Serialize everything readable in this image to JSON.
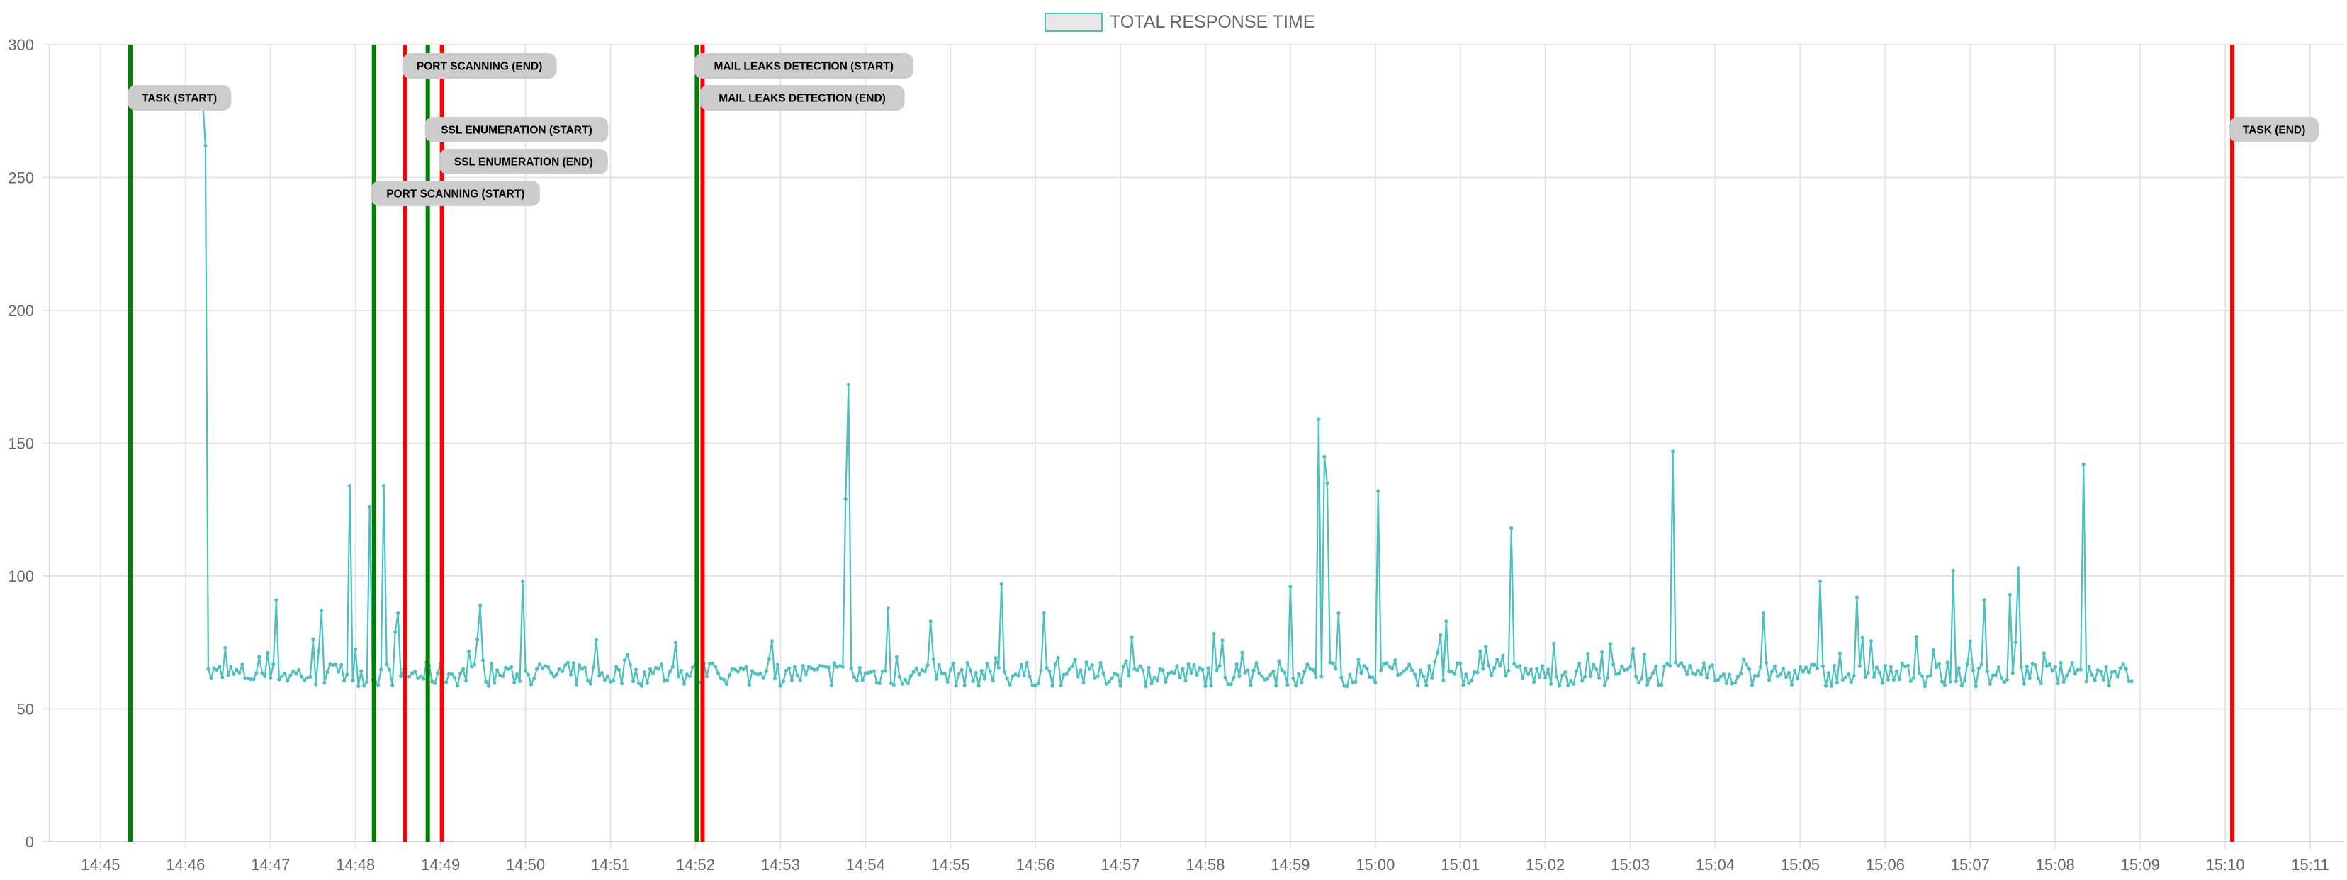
{
  "legend": {
    "label": "TOTAL RESPONSE TIME"
  },
  "colors": {
    "line": "#4bc0c0",
    "legend_fill": "#e8e8e8",
    "start_marker": "#008000",
    "end_marker": "#ff0000",
    "annotation_bg": "#cccccc",
    "grid": "#e5e5e5",
    "tick_text": "#666666"
  },
  "chart_data": {
    "type": "line",
    "title": "",
    "xlabel": "",
    "ylabel": "",
    "ylim": [
      0,
      300
    ],
    "yticks": [
      0,
      50,
      100,
      150,
      200,
      250,
      300
    ],
    "xlim": [
      "14:44:24",
      "15:11:24"
    ],
    "xticks": [
      "14:45",
      "14:46",
      "14:47",
      "14:48",
      "14:49",
      "14:50",
      "14:51",
      "14:52",
      "14:53",
      "14:54",
      "14:55",
      "14:56",
      "14:57",
      "14:58",
      "14:59",
      "15:00",
      "15:01",
      "15:02",
      "15:03",
      "15:04",
      "15:05",
      "15:06",
      "15:07",
      "15:08",
      "15:09",
      "15:10",
      "15:11"
    ],
    "grid": true,
    "legend_position": "top-center",
    "series": [
      {
        "name": "TOTAL RESPONSE TIME",
        "baseline": 63,
        "x_range": [
          "14:46:12",
          "15:08:54"
        ],
        "spikes": [
          {
            "t": "14:46:12",
            "v": 97
          },
          {
            "t": "14:46:13",
            "v": 280
          },
          {
            "t": "14:46:15",
            "v": 262
          },
          {
            "t": "14:47:05",
            "v": 91
          },
          {
            "t": "14:47:36",
            "v": 87
          },
          {
            "t": "14:47:57",
            "v": 134
          },
          {
            "t": "14:48:10",
            "v": 126
          },
          {
            "t": "14:48:20",
            "v": 134
          },
          {
            "t": "14:48:28",
            "v": 79
          },
          {
            "t": "14:48:31",
            "v": 86
          },
          {
            "t": "14:49:28",
            "v": 89
          },
          {
            "t": "14:49:59",
            "v": 98
          },
          {
            "t": "14:50:50",
            "v": 76
          },
          {
            "t": "14:53:47",
            "v": 129
          },
          {
            "t": "14:53:48",
            "v": 172
          },
          {
            "t": "14:54:17",
            "v": 88
          },
          {
            "t": "14:54:46",
            "v": 83
          },
          {
            "t": "14:55:36",
            "v": 97
          },
          {
            "t": "14:56:06",
            "v": 86
          },
          {
            "t": "14:59:00",
            "v": 96
          },
          {
            "t": "14:59:20",
            "v": 137
          },
          {
            "t": "14:59:21",
            "v": 159
          },
          {
            "t": "14:59:24",
            "v": 178
          },
          {
            "t": "14:59:25",
            "v": 145
          },
          {
            "t": "14:59:27",
            "v": 135
          },
          {
            "t": "14:59:35",
            "v": 86
          },
          {
            "t": "15:00:02",
            "v": 141
          },
          {
            "t": "15:00:03",
            "v": 132
          },
          {
            "t": "15:00:50",
            "v": 83
          },
          {
            "t": "15:01:37",
            "v": 118
          },
          {
            "t": "15:03:31",
            "v": 147
          },
          {
            "t": "15:04:35",
            "v": 86
          },
          {
            "t": "15:05:14",
            "v": 98
          },
          {
            "t": "15:05:40",
            "v": 92
          },
          {
            "t": "15:06:48",
            "v": 102
          },
          {
            "t": "15:07:11",
            "v": 91
          },
          {
            "t": "15:07:29",
            "v": 93
          },
          {
            "t": "15:07:35",
            "v": 103
          },
          {
            "t": "15:08:21",
            "v": 142
          }
        ]
      }
    ],
    "annotations": [
      {
        "label": "TASK (START)",
        "time": "14:45:21",
        "kind": "start",
        "label_y": 280
      },
      {
        "label": "PORT SCANNING (START)",
        "time": "14:48:13",
        "kind": "start",
        "label_y": 244
      },
      {
        "label": "PORT SCANNING (END)",
        "time": "14:48:35",
        "kind": "end",
        "label_y": 292
      },
      {
        "label": "SSL ENUMERATION (START)",
        "time": "14:48:51",
        "kind": "start",
        "label_y": 268
      },
      {
        "label": "SSL ENUMERATION (END)",
        "time": "14:49:01",
        "kind": "end",
        "label_y": 256
      },
      {
        "label": "MAIL LEAKS DETECTION (START)",
        "time": "14:52:01",
        "kind": "start",
        "label_y": 292
      },
      {
        "label": "MAIL LEAKS DETECTION (END)",
        "time": "14:52:05",
        "kind": "end",
        "label_y": 280
      },
      {
        "label": "TASK (END)",
        "time": "15:10:05",
        "kind": "end",
        "label_y": 268
      }
    ]
  }
}
